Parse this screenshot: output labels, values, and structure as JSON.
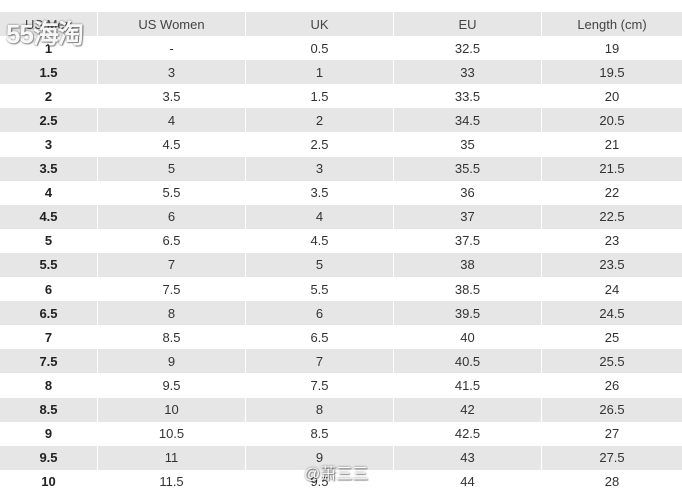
{
  "table": {
    "headers": [
      "US Men",
      "US Women",
      "UK",
      "EU",
      "Length (cm)"
    ],
    "rows": [
      [
        "1",
        "-",
        "0.5",
        "32.5",
        "19"
      ],
      [
        "1.5",
        "3",
        "1",
        "33",
        "19.5"
      ],
      [
        "2",
        "3.5",
        "1.5",
        "33.5",
        "20"
      ],
      [
        "2.5",
        "4",
        "2",
        "34.5",
        "20.5"
      ],
      [
        "3",
        "4.5",
        "2.5",
        "35",
        "21"
      ],
      [
        "3.5",
        "5",
        "3",
        "35.5",
        "21.5"
      ],
      [
        "4",
        "5.5",
        "3.5",
        "36",
        "22"
      ],
      [
        "4.5",
        "6",
        "4",
        "37",
        "22.5"
      ],
      [
        "5",
        "6.5",
        "4.5",
        "37.5",
        "23"
      ],
      [
        "5.5",
        "7",
        "5",
        "38",
        "23.5"
      ],
      [
        "6",
        "7.5",
        "5.5",
        "38.5",
        "24"
      ],
      [
        "6.5",
        "8",
        "6",
        "39.5",
        "24.5"
      ],
      [
        "7",
        "8.5",
        "6.5",
        "40",
        "25"
      ],
      [
        "7.5",
        "9",
        "7",
        "40.5",
        "25.5"
      ],
      [
        "8",
        "9.5",
        "7.5",
        "41.5",
        "26"
      ],
      [
        "8.5",
        "10",
        "8",
        "42",
        "26.5"
      ],
      [
        "9",
        "10.5",
        "8.5",
        "42.5",
        "27"
      ],
      [
        "9.5",
        "11",
        "9",
        "43",
        "27.5"
      ],
      [
        "10",
        "11.5",
        "9.5",
        "44",
        "28"
      ]
    ]
  },
  "watermarks": {
    "logo": "55海淘",
    "weibo": "@萧三三"
  }
}
